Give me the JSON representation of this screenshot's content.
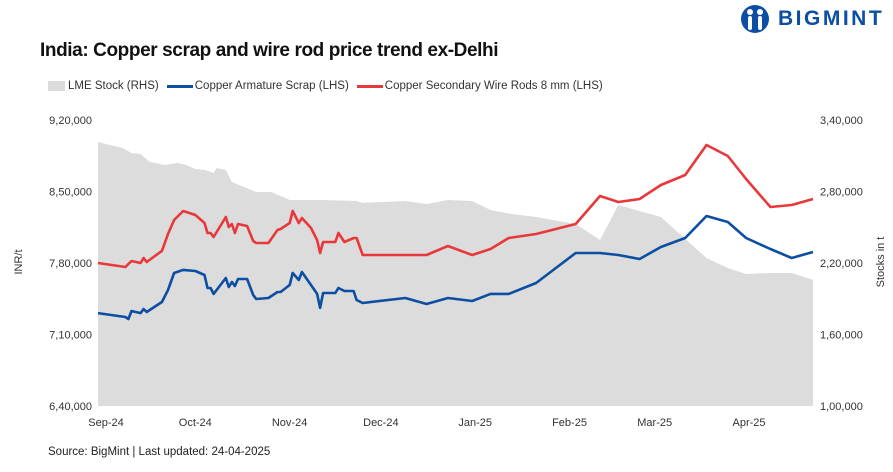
{
  "brand": {
    "name": "BIGMINT",
    "color": "#0b4ea2"
  },
  "source": "Source: BigMint | Last updated: 24-04-2025",
  "chart_data": {
    "type": "line",
    "title": "India: Copper scrap and wire rod price trend ex-Delhi",
    "ylabel": "INR/t",
    "y2label": "Stocks in t",
    "ylim": [
      640000,
      920000
    ],
    "y2lim": [
      100000,
      340000
    ],
    "yticks": [
      "6,40,000",
      "7,10,000",
      "7,80,000",
      "8,50,000",
      "9,20,000"
    ],
    "ytick_values": [
      640000,
      710000,
      780000,
      850000,
      920000
    ],
    "y2ticks": [
      "1,00,000",
      "1,60,000",
      "2,20,000",
      "2,80,000",
      "3,40,000"
    ],
    "y2tick_values": [
      100000,
      160000,
      220000,
      280000,
      340000
    ],
    "xticks": [
      "Sep-24",
      "Oct-24",
      "Nov-24",
      "Dec-24",
      "Jan-25",
      "Feb-25",
      "Mar-25",
      "Apr-25"
    ],
    "xtick_dates": [
      "2024-09-01",
      "2024-10-01",
      "2024-11-01",
      "2024-12-01",
      "2025-01-01",
      "2025-02-01",
      "2025-03-01",
      "2025-04-01"
    ],
    "xlim": [
      "2024-09-01",
      "2025-04-24"
    ],
    "grid": false,
    "legend_position": "top-left",
    "price_dates": [
      "2024-09-01",
      "2024-09-10",
      "2024-09-11",
      "2024-09-12",
      "2024-09-15",
      "2024-09-16",
      "2024-09-17",
      "2024-09-22",
      "2024-09-24",
      "2024-09-26",
      "2024-09-29",
      "2024-10-03",
      "2024-10-06",
      "2024-10-07",
      "2024-10-08",
      "2024-10-09",
      "2024-10-13",
      "2024-10-14",
      "2024-10-15",
      "2024-10-16",
      "2024-10-17",
      "2024-10-20",
      "2024-10-22",
      "2024-10-23",
      "2024-10-27",
      "2024-10-30",
      "2024-10-31",
      "2024-11-03",
      "2024-11-04",
      "2024-11-06",
      "2024-11-07",
      "2024-11-10",
      "2024-11-12",
      "2024-11-13",
      "2024-11-14",
      "2024-11-18",
      "2024-11-19",
      "2024-11-21",
      "2024-11-24",
      "2024-11-25",
      "2024-11-27",
      "2024-12-11",
      "2024-12-18",
      "2024-12-25",
      "2025-01-02",
      "2025-01-08",
      "2025-01-14",
      "2025-01-23",
      "2025-02-05",
      "2025-02-13",
      "2025-02-19",
      "2025-02-26",
      "2025-03-05",
      "2025-03-13",
      "2025-03-20",
      "2025-03-27",
      "2025-04-02",
      "2025-04-10",
      "2025-04-17",
      "2025-04-24"
    ],
    "series": [
      {
        "name": "LME Stock (RHS)",
        "type": "area",
        "axis": "right",
        "color": "#dcdcdc",
        "dates": [
          "2024-09-01",
          "2024-09-09",
          "2024-09-12",
          "2024-09-15",
          "2024-09-18",
          "2024-09-23",
          "2024-09-27",
          "2024-09-30",
          "2024-10-03",
          "2024-10-06",
          "2024-10-09",
          "2024-10-10",
          "2024-10-13",
          "2024-10-15",
          "2024-10-23",
          "2024-10-28",
          "2024-11-03",
          "2024-11-14",
          "2024-11-25",
          "2024-11-27",
          "2024-12-11",
          "2024-12-18",
          "2024-12-25",
          "2025-01-02",
          "2025-01-08",
          "2025-01-15",
          "2025-01-23",
          "2025-02-05",
          "2025-02-13",
          "2025-02-19",
          "2025-03-05",
          "2025-03-20",
          "2025-03-27",
          "2025-04-02",
          "2025-04-10",
          "2025-04-17",
          "2025-04-24"
        ],
        "values": [
          321500,
          316500,
          312300,
          311500,
          304800,
          302200,
          303900,
          302200,
          298900,
          298100,
          295500,
          299700,
          298100,
          288000,
          279600,
          279600,
          272900,
          272900,
          272000,
          270400,
          272000,
          269500,
          272900,
          272000,
          264500,
          261100,
          258600,
          252700,
          239300,
          268700,
          258600,
          224200,
          215800,
          210800,
          211600,
          211600,
          205800
        ]
      },
      {
        "name": "Copper Armature Scrap (LHS)",
        "type": "line",
        "axis": "left",
        "color": "#0b4ea2",
        "values": [
          731000,
          727100,
          725200,
          733000,
          731000,
          735000,
          732000,
          741800,
          753600,
          770200,
          773200,
          772200,
          768300,
          755500,
          755500,
          749700,
          765300,
          756500,
          761400,
          757500,
          764300,
          764300,
          748700,
          744800,
          745700,
          751600,
          751600,
          758500,
          770200,
          763400,
          771200,
          758500,
          749700,
          736000,
          750600,
          750600,
          755500,
          752600,
          752600,
          743800,
          740800,
          745700,
          739900,
          745700,
          742800,
          749700,
          749700,
          760400,
          789800,
          789800,
          787800,
          783900,
          795700,
          804500,
          826000,
          820100,
          804500,
          793700,
          784900,
          790800
        ]
      },
      {
        "name": "Copper Secondary Wire Rods 8 mm (LHS)",
        "type": "line",
        "axis": "left",
        "color": "#e8383a",
        "values": [
          780000,
          776100,
          779000,
          782000,
          780000,
          784900,
          781000,
          791800,
          808400,
          822100,
          830900,
          827000,
          819200,
          809400,
          809400,
          805500,
          825000,
          815200,
          818200,
          809400,
          818200,
          816200,
          801500,
          799600,
          799600,
          812300,
          813300,
          819200,
          830900,
          819200,
          824100,
          814300,
          802500,
          789800,
          800600,
          800600,
          809400,
          800600,
          804500,
          804500,
          787800,
          787800,
          787800,
          796600,
          787800,
          793700,
          804500,
          808400,
          818200,
          845600,
          839700,
          842700,
          856400,
          866200,
          895500,
          884800,
          862200,
          834800,
          836800,
          842700
        ]
      }
    ]
  }
}
